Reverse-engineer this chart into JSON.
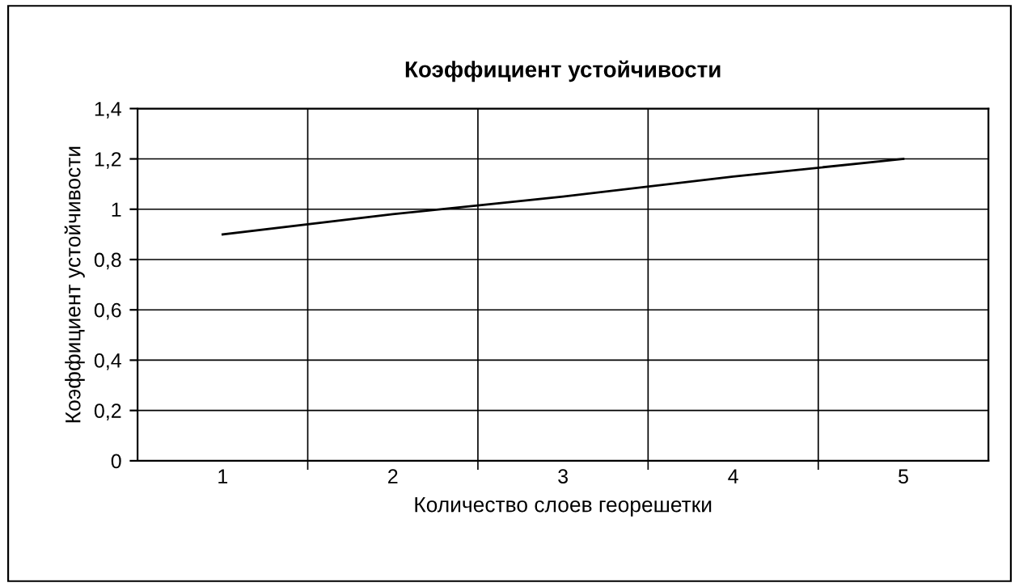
{
  "chart_data": {
    "type": "line",
    "title": "Коэффициент устойчивости",
    "xlabel": "Количество слоев георешетки",
    "ylabel": "Коэффициент устойчивости",
    "categories": [
      "1",
      "2",
      "3",
      "4",
      "5"
    ],
    "series": [
      {
        "color": "#000000",
        "values": [
          0.9,
          0.98,
          1.05,
          1.13,
          1.2
        ]
      }
    ],
    "ylim": [
      0,
      1.4
    ],
    "yticks": [
      {
        "value": 0,
        "label": "0"
      },
      {
        "value": 0.2,
        "label": "0,2"
      },
      {
        "value": 0.4,
        "label": "0,4"
      },
      {
        "value": 0.6,
        "label": "0,6"
      },
      {
        "value": 0.8,
        "label": "0,8"
      },
      {
        "value": 1,
        "label": "1"
      },
      {
        "value": 1.2,
        "label": "1,2"
      },
      {
        "value": 1.4,
        "label": "1,4"
      }
    ],
    "grid": true,
    "legend": false,
    "marker": "none",
    "line_style": "solid"
  }
}
